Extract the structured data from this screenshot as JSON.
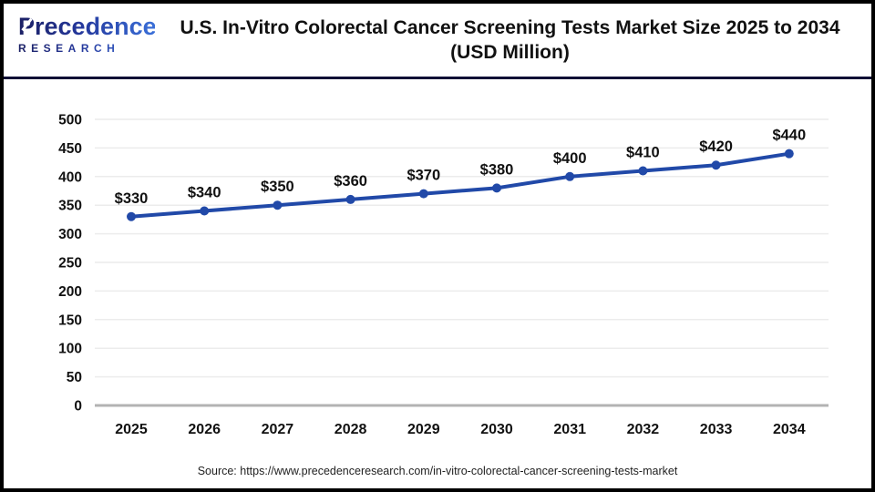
{
  "header": {
    "logo": {
      "brand_name": "Precedence",
      "brand_sub": "RESEARCH"
    },
    "title_line1": "U.S. In-Vitro Colorectal Cancer Screening Tests Market Size 2025 to 2034",
    "title_line2": "(USD Million)"
  },
  "chart_data": {
    "type": "line",
    "title": "U.S. In-Vitro Colorectal Cancer Screening Tests Market Size 2025 to 2034 (USD Million)",
    "categories": [
      "2025",
      "2026",
      "2027",
      "2028",
      "2029",
      "2030",
      "2031",
      "2032",
      "2033",
      "2034"
    ],
    "series": [
      {
        "name": "U.S. In-Vitro Colorectal Cancer Screening Tests Market Size",
        "values": [
          330,
          340,
          350,
          360,
          370,
          380,
          400,
          410,
          420,
          440
        ],
        "labels": [
          "$330",
          "$340",
          "$350",
          "$360",
          "$370",
          "$380",
          "$400",
          "$410",
          "$420",
          "$440"
        ]
      }
    ],
    "xlabel": "",
    "ylabel": "",
    "ylim": [
      0,
      500
    ],
    "ytick_step": 50,
    "grid": true,
    "legend_position": "none",
    "colors": {
      "line": "#2149a8",
      "marker": "#2149a8",
      "grid": "#ececec",
      "axis_baseline": "#b3b3b3",
      "tick_text": "#111111",
      "data_label_text": "#111111"
    }
  },
  "footer": {
    "source": "Source: https://www.precedenceresearch.com/in-vitro-colorectal-cancer-screening-tests-market"
  },
  "theme": {
    "background": "#ffffff",
    "border_color": "#000000",
    "separator_color": "#0e0e35",
    "logo_navy": "#1b2064",
    "logo_blue": "#3a6fd8"
  }
}
